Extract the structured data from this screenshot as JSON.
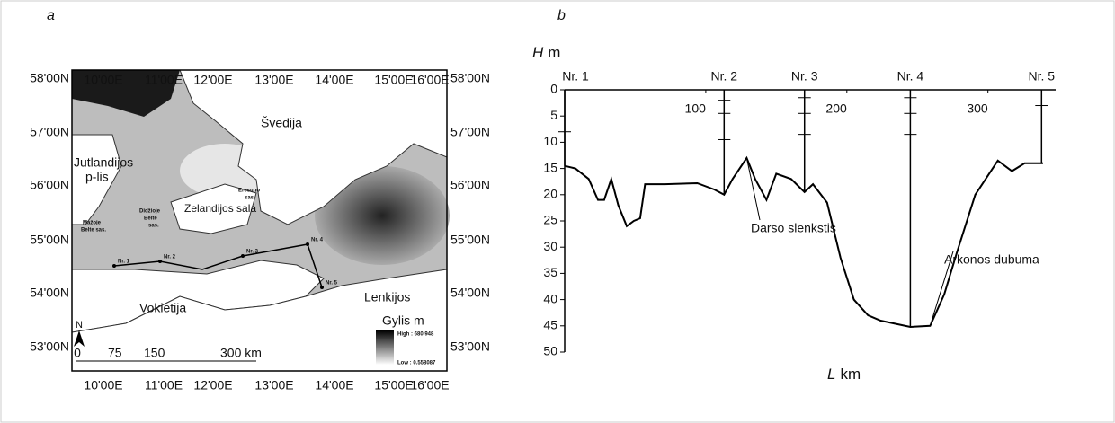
{
  "map": {
    "panel_label": "a",
    "lon_labels": [
      "10'00E",
      "11'00E",
      "12'00E",
      "13'00E",
      "14'00E",
      "15'00E",
      "16'00E"
    ],
    "lat_labels": [
      "58'00N",
      "57'00N",
      "56'00N",
      "55'00N",
      "54'00N",
      "53'00N"
    ],
    "places": [
      "Švedija",
      "Jutlandijos",
      "p-lis",
      "Zelandijos sala",
      "Vokietija",
      "Lenkijos"
    ],
    "straits": [
      "Mažoje",
      "Belte sas.",
      "Didžioje",
      "Belte",
      "sas.",
      "Eresuno",
      "sas."
    ],
    "stations": [
      "Nr. 1",
      "Nr. 2",
      "Nr. 3",
      "Nr. 4",
      "Nr. 5"
    ],
    "legend": {
      "title": "Gylis  m",
      "high": "High : 680.948",
      "low": "Low : 0.558087"
    },
    "scale": [
      "0",
      "75",
      "150",
      "300 km"
    ],
    "north": "N"
  },
  "chart_data": {
    "type": "line",
    "panel_label": "b",
    "ylabel": {
      "symbol": "H",
      "unit": "m"
    },
    "xlabel": {
      "symbol": "L",
      "unit": "km"
    },
    "x": [
      0,
      7.6,
      17,
      23.6,
      28,
      33,
      38,
      44,
      49,
      53.5,
      57,
      71,
      94,
      106,
      113,
      119,
      129,
      135,
      143,
      150,
      160.5,
      170,
      176,
      186,
      195.5,
      205,
      215,
      224,
      245,
      259,
      269,
      278,
      291,
      307,
      317,
      326,
      339
    ],
    "values": [
      14.5,
      15,
      17,
      21,
      21,
      17,
      22,
      26,
      25,
      24.5,
      18,
      18,
      17.8,
      19,
      20,
      17,
      13,
      17,
      21,
      16,
      17,
      19.5,
      18,
      21.5,
      32,
      40,
      43,
      44,
      45.2,
      45,
      39,
      31,
      20,
      13.5,
      15.5,
      14,
      14
    ],
    "color": "#000000",
    "xlim": [
      0,
      348
    ],
    "xticks": [
      100,
      200,
      300
    ],
    "ylim": [
      0,
      50
    ],
    "yticks": [
      0,
      5,
      10,
      15,
      20,
      25,
      30,
      35,
      40,
      45,
      50
    ],
    "y_inverted": true,
    "stations": [
      {
        "name": "Nr. 1",
        "x": 0,
        "depth": 14.5,
        "ticks": [
          8
        ]
      },
      {
        "name": "Nr. 2",
        "x": 113,
        "depth": 20,
        "ticks": [
          2,
          4.5,
          9.5
        ]
      },
      {
        "name": "Nr. 3",
        "x": 170,
        "depth": 19.5,
        "ticks": [
          1.5,
          4.5,
          8.5
        ]
      },
      {
        "name": "Nr. 4",
        "x": 245,
        "depth": 45.2,
        "ticks": [
          1.5,
          4.5,
          8.5
        ]
      },
      {
        "name": "Nr. 5",
        "x": 338,
        "depth": 14,
        "ticks": [
          3
        ]
      }
    ],
    "annotations": [
      {
        "text": "Darso slenkstis",
        "x": 129,
        "y": 13
      },
      {
        "text": "Arkonos dubuma",
        "x": 259,
        "y": 45
      }
    ]
  }
}
